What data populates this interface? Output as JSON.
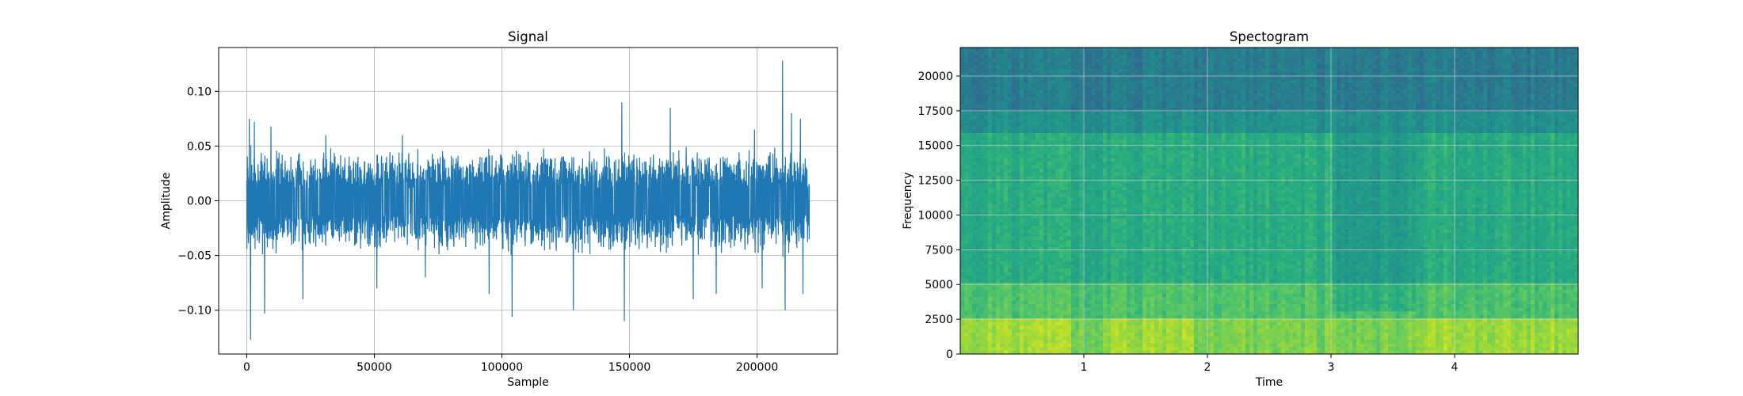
{
  "chart_data": [
    {
      "type": "line",
      "title": "Signal",
      "xlabel": "Sample",
      "ylabel": "Amplitude",
      "xlim": [
        -11000,
        231500
      ],
      "ylim": [
        -0.14,
        0.14
      ],
      "xticks": [
        0,
        50000,
        100000,
        150000,
        200000
      ],
      "yticks": [
        -0.1,
        -0.05,
        0.0,
        0.05,
        0.1
      ],
      "xtick_labels": [
        "0",
        "50000",
        "100000",
        "150000",
        "200000"
      ],
      "ytick_labels": [
        "−0.10",
        "−0.05",
        "0.00",
        "0.05",
        "0.10"
      ],
      "grid": true,
      "series": [
        {
          "color": "#1f77b4",
          "n_samples": 220500,
          "typical_envelope": 0.035,
          "peaks": [
            {
              "x": 1000,
              "y": 0.075
            },
            {
              "x": 1500,
              "y": -0.127
            },
            {
              "x": 3000,
              "y": 0.072
            },
            {
              "x": 7000,
              "y": -0.103
            },
            {
              "x": 9500,
              "y": 0.068
            },
            {
              "x": 22000,
              "y": -0.09
            },
            {
              "x": 31000,
              "y": 0.06
            },
            {
              "x": 51000,
              "y": -0.08
            },
            {
              "x": 61000,
              "y": 0.06
            },
            {
              "x": 70000,
              "y": -0.07
            },
            {
              "x": 95000,
              "y": -0.085
            },
            {
              "x": 104000,
              "y": -0.106
            },
            {
              "x": 128000,
              "y": -0.1
            },
            {
              "x": 147000,
              "y": 0.09
            },
            {
              "x": 148000,
              "y": -0.11
            },
            {
              "x": 166000,
              "y": 0.085
            },
            {
              "x": 175000,
              "y": -0.09
            },
            {
              "x": 184000,
              "y": -0.085
            },
            {
              "x": 199000,
              "y": 0.065
            },
            {
              "x": 202000,
              "y": -0.08
            },
            {
              "x": 210000,
              "y": 0.128
            },
            {
              "x": 211000,
              "y": -0.1
            },
            {
              "x": 213500,
              "y": 0.08
            },
            {
              "x": 217000,
              "y": 0.075
            },
            {
              "x": 218000,
              "y": -0.085
            }
          ]
        }
      ]
    },
    {
      "type": "heatmap",
      "title": "Spectogram",
      "xlabel": "Time",
      "ylabel": "Frequency",
      "xlim": [
        0,
        5
      ],
      "ylim": [
        0,
        22050
      ],
      "xticks": [
        1,
        2,
        3,
        4
      ],
      "yticks": [
        0,
        2500,
        5000,
        7500,
        10000,
        12500,
        15000,
        17500,
        20000
      ],
      "xtick_labels": [
        "1",
        "2",
        "3",
        "4"
      ],
      "ytick_labels": [
        "0",
        "2500",
        "5000",
        "7500",
        "10000",
        "12500",
        "15000",
        "17500",
        "20000"
      ],
      "grid": true,
      "colormap": "viridis",
      "regions": [
        {
          "freq_range": [
            17500,
            22050
          ],
          "level": 0.42
        },
        {
          "freq_range": [
            16000,
            17500
          ],
          "level": 0.5
        },
        {
          "freq_range": [
            5000,
            16000
          ],
          "level": 0.62
        },
        {
          "freq_range": [
            2500,
            5000
          ],
          "level": 0.72
        },
        {
          "freq_range": [
            0,
            2500
          ],
          "level": 0.8
        }
      ],
      "quiet_time_range": [
        3.0,
        3.7
      ]
    }
  ]
}
